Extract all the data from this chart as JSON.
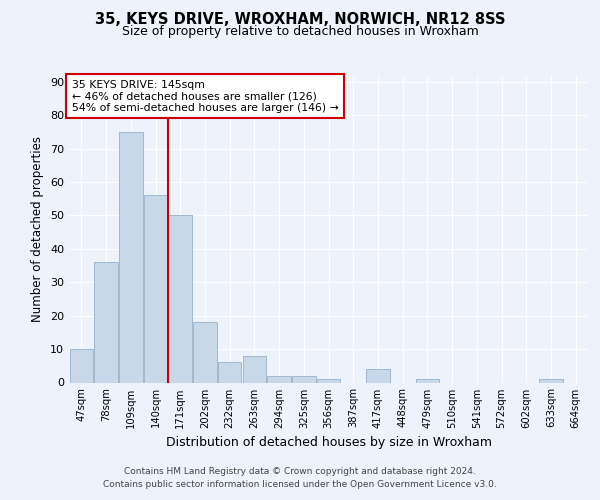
{
  "title1": "35, KEYS DRIVE, WROXHAM, NORWICH, NR12 8SS",
  "title2": "Size of property relative to detached houses in Wroxham",
  "xlabel": "Distribution of detached houses by size in Wroxham",
  "ylabel": "Number of detached properties",
  "bin_labels": [
    "47sqm",
    "78sqm",
    "109sqm",
    "140sqm",
    "171sqm",
    "202sqm",
    "232sqm",
    "263sqm",
    "294sqm",
    "325sqm",
    "356sqm",
    "387sqm",
    "417sqm",
    "448sqm",
    "479sqm",
    "510sqm",
    "541sqm",
    "572sqm",
    "602sqm",
    "633sqm",
    "664sqm"
  ],
  "bar_heights": [
    10,
    36,
    75,
    56,
    50,
    18,
    6,
    8,
    2,
    2,
    1,
    0,
    4,
    0,
    1,
    0,
    0,
    0,
    0,
    1,
    0
  ],
  "bar_color": "#c8d8e8",
  "bar_edge_color": "#a0b8d0",
  "vline_color": "#cc0000",
  "annotation_title": "35 KEYS DRIVE: 145sqm",
  "annotation_line1": "← 46% of detached houses are smaller (126)",
  "annotation_line2": "54% of semi-detached houses are larger (146) →",
  "annotation_box_color": "#ffffff",
  "annotation_box_edge": "#cc0000",
  "ylim": [
    0,
    92
  ],
  "yticks": [
    0,
    10,
    20,
    30,
    40,
    50,
    60,
    70,
    80,
    90
  ],
  "background_color": "#eef2fb",
  "grid_color": "#ffffff",
  "footer1": "Contains HM Land Registry data © Crown copyright and database right 2024.",
  "footer2": "Contains public sector information licensed under the Open Government Licence v3.0."
}
